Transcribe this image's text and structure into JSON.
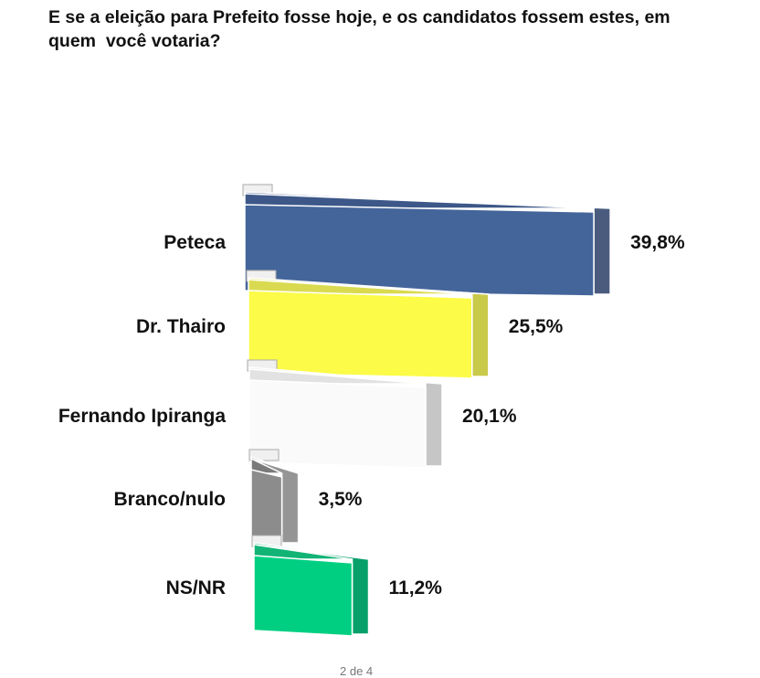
{
  "chart_data": {
    "type": "bar",
    "orientation": "horizontal",
    "style": "3d",
    "title": "E se a eleição para Prefeito fosse hoje, e os candidatos fossem estes, em\nquem  você votaria?",
    "categories": [
      "Peteca",
      "Dr. Thairo",
      "Fernando Ipiranga",
      "Branco/nulo",
      "NS/NR"
    ],
    "values": [
      39.8,
      25.5,
      20.1,
      3.5,
      11.2
    ],
    "value_labels": [
      "39,8%",
      "25,5%",
      "20,1%",
      "3,5%",
      "11,2%"
    ],
    "unit": "%",
    "colors": [
      {
        "front": "#44659a",
        "top": "#3c5788",
        "side": "#4a5b7e"
      },
      {
        "front": "#fbfb48",
        "top": "#dada50",
        "side": "#c9c94a"
      },
      {
        "front": "#fafafa",
        "top": "#e2e2e2",
        "side": "#c6c6c6"
      },
      {
        "front": "#8c8c8c",
        "top": "#7a7a7a",
        "side": "#959595"
      },
      {
        "front": "#00cf82",
        "top": "#12b476",
        "side": "#08a06a"
      }
    ],
    "grid": false,
    "legend": "none"
  },
  "footer": {
    "page": "2 de 4"
  }
}
